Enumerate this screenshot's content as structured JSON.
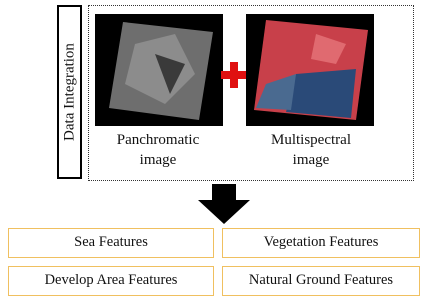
{
  "sidebar": {
    "label": "Data Integration"
  },
  "images": [
    {
      "caption": "Panchromatic image"
    },
    {
      "caption": "Multispectral image"
    }
  ],
  "features": [
    "Sea Features",
    "Vegetation Features",
    "Develop Area Features",
    "Natural Ground Features"
  ]
}
